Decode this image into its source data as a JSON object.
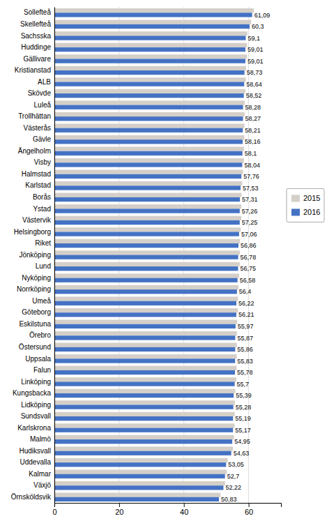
{
  "chart_data": {
    "type": "bar",
    "orientation": "horizontal",
    "categories": [
      "Sollefteå",
      "Skellefteå",
      "Sachsska",
      "Huddinge",
      "Gällivare",
      "Kristianstad",
      "ALB",
      "Skövde",
      "Luleå",
      "Trollhättan",
      "Västerås",
      "Gävle",
      "Ängelholm",
      "Visby",
      "Halmstad",
      "Karlstad",
      "Borås",
      "Ystad",
      "Västervik",
      "Helsingborg",
      "Riket",
      "Jönköping",
      "Lund",
      "Nyköping",
      "Norrköping",
      "Umeå",
      "Göteborg",
      "Eskilstuna",
      "Örebro",
      "Östersund",
      "Uppsala",
      "Falun",
      "Linköping",
      "Kungsbacka",
      "Lidköping",
      "Sundsvall",
      "Karlskrona",
      "Malmö",
      "Hudiksvall",
      "Uddevalla",
      "Kalmar",
      "Växjö",
      "Örnsköldsvik"
    ],
    "series": [
      {
        "name": "2015",
        "color": "#d4cfc8",
        "values": [
          61.59,
          60.8,
          59.6,
          59.51,
          59.51,
          59.23,
          59.14,
          59.02,
          58.78,
          58.77,
          58.71,
          58.66,
          58.6,
          58.54,
          58.26,
          58.03,
          57.81,
          57.76,
          57.75,
          57.56,
          57.36,
          57.28,
          57.25,
          57.08,
          56.9,
          56.72,
          56.71,
          56.47,
          56.37,
          56.36,
          56.33,
          56.28,
          56.2,
          55.89,
          55.78,
          55.69,
          55.67,
          55.45,
          55.13,
          53.55,
          53.2,
          52.72,
          51.33
        ]
      },
      {
        "name": "2016",
        "color": "#4472c4",
        "values": [
          61.09,
          60.3,
          59.1,
          59.01,
          59.01,
          58.73,
          58.64,
          58.52,
          58.28,
          58.27,
          58.21,
          58.16,
          58.1,
          58.04,
          57.76,
          57.53,
          57.31,
          57.26,
          57.25,
          57.06,
          56.86,
          56.78,
          56.75,
          56.58,
          56.4,
          56.22,
          56.21,
          55.97,
          55.87,
          55.86,
          55.83,
          55.78,
          55.7,
          55.39,
          55.28,
          55.19,
          55.17,
          54.95,
          54.63,
          53.05,
          52.7,
          52.22,
          50.83
        ],
        "value_labels": [
          "61,09",
          "60,3",
          "59,1",
          "59,01",
          "59,01",
          "58,73",
          "58,64",
          "58,52",
          "58,28",
          "58,27",
          "58,21",
          "58,16",
          "58,1",
          "58,04",
          "57,76",
          "57,53",
          "57,31",
          "57,26",
          "57,25",
          "57,06",
          "56,86",
          "56,78",
          "56,75",
          "56,58",
          "56,4",
          "56,22",
          "56,21",
          "55,97",
          "55,87",
          "55,86",
          "55,83",
          "55,78",
          "55,7",
          "55,39",
          "55,28",
          "55,19",
          "55,17",
          "54,95",
          "54,63",
          "53,05",
          "52,7",
          "52,22",
          "50,83"
        ]
      }
    ],
    "xlim": [
      0,
      70
    ],
    "xticks": [
      0,
      20,
      40,
      60
    ],
    "grid": true,
    "legend": "right",
    "data_labels": true
  }
}
